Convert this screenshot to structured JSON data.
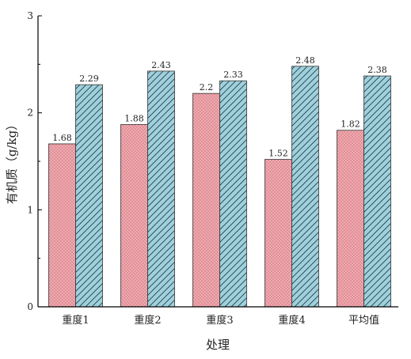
{
  "chart_data": {
    "type": "bar",
    "title": "",
    "xlabel": "处理",
    "ylabel": "有机质（g/kg）",
    "categories": [
      "重度1",
      "重度2",
      "重度3",
      "重度4",
      "平均值"
    ],
    "series": [
      {
        "values": [
          1.68,
          1.88,
          2.2,
          1.52,
          1.82
        ],
        "value_labels": [
          "1.68",
          "1.88",
          "2.2",
          "1.52",
          "1.82"
        ],
        "color": "#f4a6ad",
        "pattern": "dots"
      },
      {
        "values": [
          2.29,
          2.43,
          2.33,
          2.48,
          2.38
        ],
        "value_labels": [
          "2.29",
          "2.43",
          "2.33",
          "2.48",
          "2.38"
        ],
        "color": "#9fd0dc",
        "pattern": "diagonal-hatch"
      }
    ],
    "ylim": [
      0,
      3
    ],
    "yticks": [
      "0",
      "1",
      "2",
      "3"
    ],
    "grid": false,
    "legend": "none"
  }
}
